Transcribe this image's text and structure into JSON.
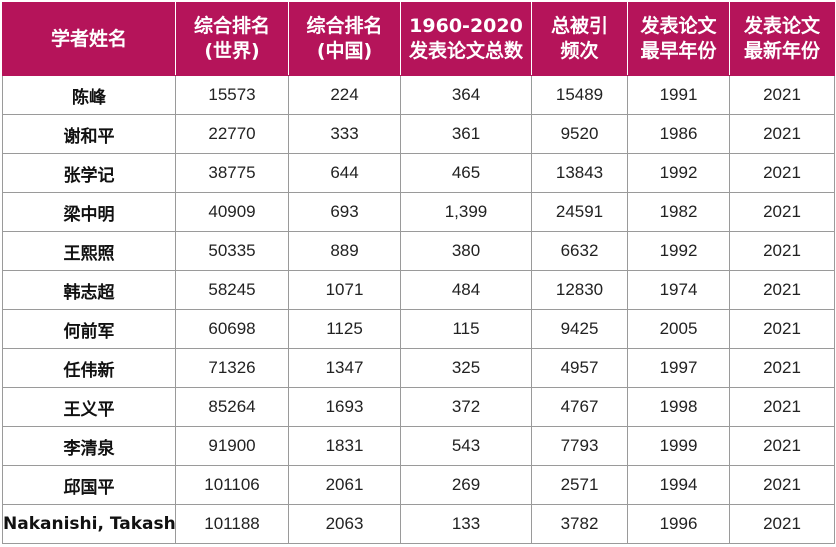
{
  "table": {
    "headers": [
      [
        "学者姓名"
      ],
      [
        "综合排名",
        "(世界)"
      ],
      [
        "综合排名",
        "(中国)"
      ],
      [
        "1960-2020",
        "发表论文总数"
      ],
      [
        "总被引",
        "频次"
      ],
      [
        "发表论文",
        "最早年份"
      ],
      [
        "发表论文",
        "最新年份"
      ]
    ],
    "rows": [
      [
        "陈峰",
        "15573",
        "224",
        "364",
        "15489",
        "1991",
        "2021"
      ],
      [
        "谢和平",
        "22770",
        "333",
        "361",
        "9520",
        "1986",
        "2021"
      ],
      [
        "张学记",
        "38775",
        "644",
        "465",
        "13843",
        "1992",
        "2021"
      ],
      [
        "梁中明",
        "40909",
        "693",
        "1,399",
        "24591",
        "1982",
        "2021"
      ],
      [
        "王熙照",
        "50335",
        "889",
        "380",
        "6632",
        "1992",
        "2021"
      ],
      [
        "韩志超",
        "58245",
        "1071",
        "484",
        "12830",
        "1974",
        "2021"
      ],
      [
        "何前军",
        "60698",
        "1125",
        "115",
        "9425",
        "2005",
        "2021"
      ],
      [
        "任伟新",
        "71326",
        "1347",
        "325",
        "4957",
        "1997",
        "2021"
      ],
      [
        "王义平",
        "85264",
        "1693",
        "372",
        "4767",
        "1998",
        "2021"
      ],
      [
        "李清泉",
        "91900",
        "1831",
        "543",
        "7793",
        "1999",
        "2021"
      ],
      [
        "邱国平",
        "101106",
        "2061",
        "269",
        "2571",
        "1994",
        "2021"
      ],
      [
        "Nakanishi, Takashi",
        "101188",
        "2063",
        "133",
        "3782",
        "1996",
        "2021"
      ]
    ]
  },
  "colors": {
    "header_bg": "#b5145a",
    "header_text": "#ffffff",
    "border": "#9a9a9a"
  }
}
